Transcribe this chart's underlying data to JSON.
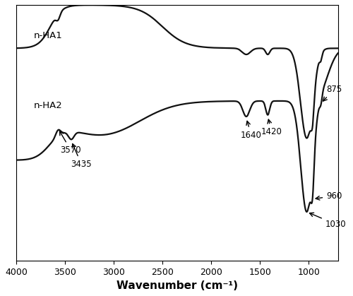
{
  "xlabel": "Wavenumber (cm⁻¹)",
  "xlim_left": 4000,
  "xlim_right": 700,
  "xticks": [
    4000,
    3500,
    3000,
    2500,
    2000,
    1500,
    1000
  ],
  "background_color": "#ffffff",
  "line_color": "#111111",
  "label_nHA1": "n-HA1",
  "label_nHA2": "n-HA2",
  "nHA1_baseline": 0.82,
  "nHA2_baseline": 0.38,
  "figsize": [
    5.0,
    4.19
  ],
  "dpi": 100
}
